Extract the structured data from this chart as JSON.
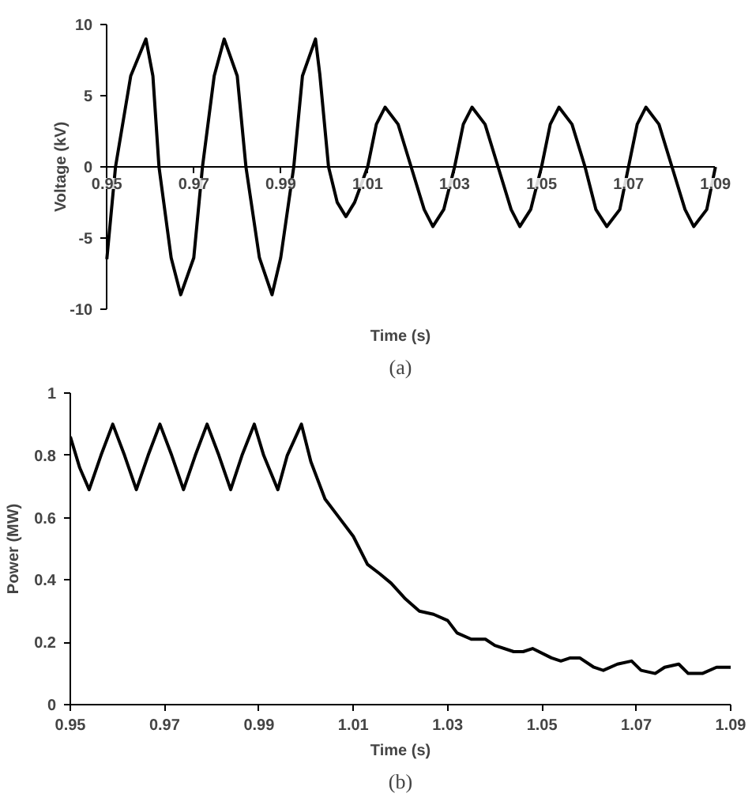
{
  "chart_data": [
    {
      "type": "line",
      "xlabel": "Time (s)",
      "ylabel": "Voltage (kV)",
      "annotations": [
        "(a)"
      ],
      "color": "#000000",
      "grid": false,
      "xlim": [
        0.95,
        1.09
      ],
      "xticks": [
        0.95,
        0.97,
        0.99,
        1.01,
        1.03,
        1.05,
        1.07,
        1.09
      ],
      "ylim": [
        -10,
        10
      ],
      "yticks": [
        -10,
        -5,
        0,
        5,
        10
      ],
      "x": [
        0.95,
        0.952,
        0.9555,
        0.959,
        0.9606,
        0.962,
        0.9648,
        0.967,
        0.97,
        0.972,
        0.9747,
        0.977,
        0.98,
        0.982,
        0.9851,
        0.988,
        0.99,
        0.993,
        0.995,
        0.998,
        0.999,
        1.001,
        1.003,
        1.005,
        1.007,
        1.01,
        1.012,
        1.014,
        1.017,
        1.02,
        1.023,
        1.025,
        1.0275,
        1.03,
        1.032,
        1.034,
        1.037,
        1.04,
        1.043,
        1.045,
        1.0475,
        1.05,
        1.052,
        1.054,
        1.057,
        1.06,
        1.0625,
        1.065,
        1.068,
        1.07,
        1.072,
        1.074,
        1.077,
        1.08,
        1.083,
        1.085,
        1.088,
        1.09
      ],
      "values": [
        -6.5,
        0,
        6.4,
        9,
        6.4,
        0,
        -6.4,
        -9,
        -6.4,
        0,
        6.4,
        9,
        6.4,
        0,
        -6.4,
        -9,
        -6.4,
        0,
        6.4,
        9,
        6.5,
        0,
        -2.5,
        -3.5,
        -2.5,
        0,
        3,
        4.2,
        3,
        0,
        -3,
        -4.2,
        -3,
        0,
        3,
        4.2,
        3,
        0,
        -3,
        -4.2,
        -3,
        0,
        3,
        4.2,
        3,
        0,
        -3,
        -4.2,
        -3,
        0,
        3,
        4.2,
        3,
        0,
        -3,
        -4.2,
        -3,
        0
      ]
    },
    {
      "type": "line",
      "xlabel": "Time (s)",
      "ylabel": "Power (MW)",
      "annotations": [
        "(b)"
      ],
      "color": "#000000",
      "grid": false,
      "xlim": [
        0.95,
        1.09
      ],
      "xticks": [
        0.95,
        0.97,
        0.99,
        1.01,
        1.03,
        1.05,
        1.07,
        1.09
      ],
      "ylim": [
        0,
        1
      ],
      "yticks": [
        0,
        0.2,
        0.4,
        0.6,
        0.8,
        1
      ],
      "x": [
        0.95,
        0.952,
        0.954,
        0.9565,
        0.959,
        0.9615,
        0.964,
        0.9665,
        0.969,
        0.9715,
        0.974,
        0.9765,
        0.979,
        0.9815,
        0.984,
        0.9864,
        0.989,
        0.991,
        0.994,
        0.996,
        0.999,
        1.001,
        1.004,
        1.0065,
        1.01,
        1.013,
        1.0156,
        1.018,
        1.021,
        1.024,
        1.027,
        1.03,
        1.032,
        1.035,
        1.038,
        1.04,
        1.044,
        1.046,
        1.048,
        1.052,
        1.054,
        1.056,
        1.058,
        1.061,
        1.063,
        1.066,
        1.069,
        1.071,
        1.074,
        1.076,
        1.079,
        1.081,
        1.084,
        1.087,
        1.09
      ],
      "values": [
        0.86,
        0.76,
        0.69,
        0.8,
        0.9,
        0.8,
        0.69,
        0.8,
        0.9,
        0.8,
        0.69,
        0.8,
        0.9,
        0.8,
        0.69,
        0.8,
        0.9,
        0.8,
        0.69,
        0.8,
        0.9,
        0.78,
        0.66,
        0.61,
        0.54,
        0.45,
        0.42,
        0.39,
        0.34,
        0.3,
        0.29,
        0.27,
        0.23,
        0.21,
        0.21,
        0.19,
        0.17,
        0.17,
        0.18,
        0.15,
        0.14,
        0.15,
        0.15,
        0.12,
        0.11,
        0.13,
        0.14,
        0.11,
        0.1,
        0.12,
        0.13,
        0.1,
        0.1,
        0.12,
        0.12
      ]
    }
  ]
}
